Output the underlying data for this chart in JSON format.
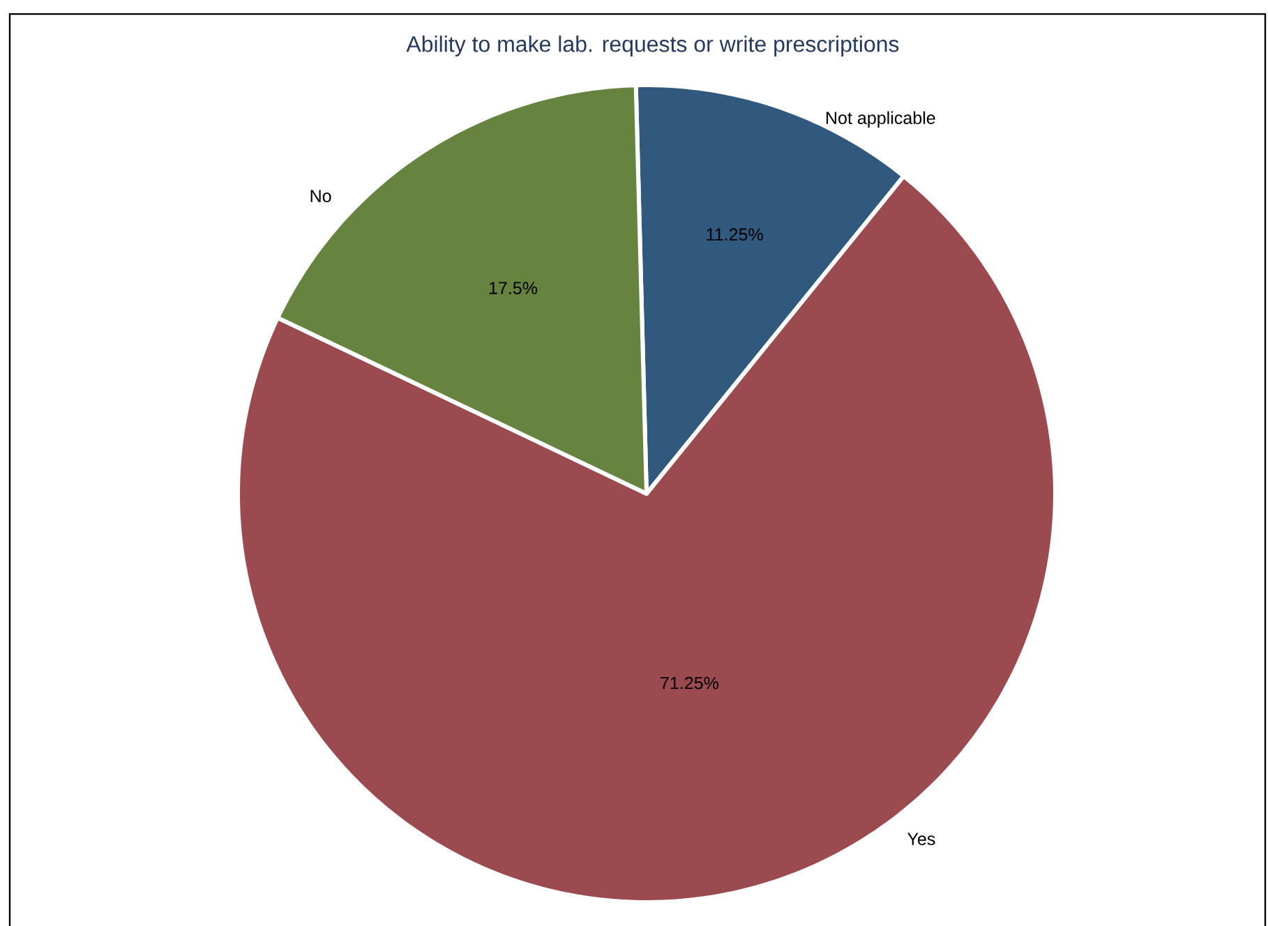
{
  "chart_data": {
    "type": "pie",
    "title": "Ability to make lab. requests or write prescriptions",
    "categories": [
      "Not applicable",
      "Yes",
      "No"
    ],
    "values": [
      11.25,
      71.25,
      17.5
    ],
    "colors": [
      "#31597d",
      "#9b4a4f",
      "#66833f"
    ],
    "value_labels": [
      "11.25%",
      "71.25%",
      "17.5%"
    ]
  }
}
